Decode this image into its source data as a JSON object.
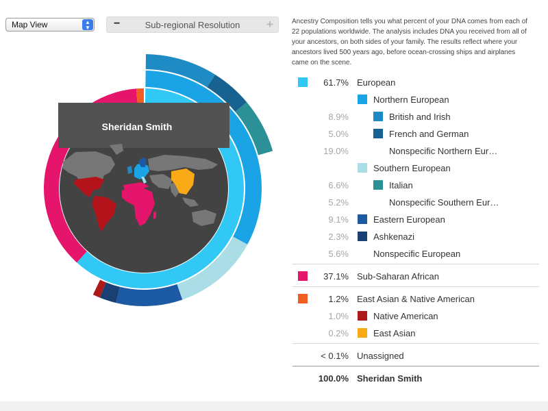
{
  "toolbar": {
    "view_select": "Map View",
    "resolution_label": "Sub-regional Resolution",
    "minus_symbol": "−",
    "plus_symbol": "+"
  },
  "description": "Ancestry Composition tells you what percent of your DNA comes from each of 22 populations worldwide. The analysis includes DNA you received from all of your ancestors, on both sides of your family. The results reflect where your ancestors lived 500 years ago, before ocean-crossing ships and airplanes came on the scene.",
  "chart_data": {
    "type": "pie",
    "subtype": "multi-ring-sunburst",
    "center_label": "Sheridan Smith",
    "rings": [
      {
        "level": 1,
        "segments": [
          {
            "name": "European",
            "value": 61.7,
            "color": "#31c8f5"
          },
          {
            "name": "Sub-Saharan African",
            "value": 37.1,
            "color": "#e5156b"
          },
          {
            "name": "East Asian & Native American",
            "value": 1.2,
            "color": "#f15e22"
          }
        ]
      },
      {
        "level": 2,
        "segments": [
          {
            "name": "Northern European",
            "value": 32.9,
            "color": "#1aa4e6"
          },
          {
            "name": "Southern European",
            "value": 11.8,
            "color": "#aadde5"
          },
          {
            "name": "Eastern European",
            "value": 9.1,
            "color": "#1c5aa4"
          },
          {
            "name": "Ashkenazi",
            "value": 2.3,
            "color": "#1a3f72"
          },
          {
            "name": "Native American",
            "value": 1.0,
            "color": "#ac1a1a"
          }
        ]
      },
      {
        "level": 3,
        "segments": [
          {
            "name": "British and Irish",
            "value": 8.9,
            "color": "#1f8bc5"
          },
          {
            "name": "French and German",
            "value": 5.0,
            "color": "#176290"
          },
          {
            "name": "Italian",
            "value": 6.6,
            "color": "#2b9197"
          }
        ]
      }
    ]
  },
  "rows": [
    {
      "pct": "61.7%",
      "label": "European",
      "color": "#31c8f5",
      "level": 0,
      "gray": false
    },
    {
      "pct": "",
      "label": "Northern European",
      "color": "#1aa4e6",
      "level": 1,
      "gray": false
    },
    {
      "pct": "8.9%",
      "label": "British and Irish",
      "color": "#1f8bc5",
      "level": 2,
      "gray": true
    },
    {
      "pct": "5.0%",
      "label": "French and German",
      "color": "#176290",
      "level": 2,
      "gray": true
    },
    {
      "pct": "19.0%",
      "label": "Nonspecific Northern Eur…",
      "color": "",
      "level": 2,
      "gray": true
    },
    {
      "pct": "",
      "label": "Southern European",
      "color": "#aadde5",
      "level": 1,
      "gray": false
    },
    {
      "pct": "6.6%",
      "label": "Italian",
      "color": "#2b9197",
      "level": 2,
      "gray": true
    },
    {
      "pct": "5.2%",
      "label": "Nonspecific Southern Eur…",
      "color": "",
      "level": 2,
      "gray": true
    },
    {
      "pct": "9.1%",
      "label": "Eastern European",
      "color": "#1c5aa4",
      "level": 1,
      "gray": true
    },
    {
      "pct": "2.3%",
      "label": "Ashkenazi",
      "color": "#1a3f72",
      "level": 1,
      "gray": true
    },
    {
      "pct": "5.6%",
      "label": "Nonspecific European",
      "color": "",
      "level": 1,
      "gray": true
    },
    {
      "divider": true
    },
    {
      "pct": "37.1%",
      "label": "Sub-Saharan African",
      "color": "#e5156b",
      "level": 0,
      "gray": false
    },
    {
      "divider": true
    },
    {
      "pct": "1.2%",
      "label": "East Asian & Native American",
      "color": "#f15e22",
      "level": 0,
      "gray": false
    },
    {
      "pct": "1.0%",
      "label": "Native American",
      "color": "#ac1a1a",
      "level": 1,
      "gray": true
    },
    {
      "pct": "0.2%",
      "label": "East Asian",
      "color": "#f7aa16",
      "level": 1,
      "gray": true
    },
    {
      "divider": true
    },
    {
      "pct": "< 0.1%",
      "label": "Unassigned",
      "color": "",
      "level": 0,
      "gray": false
    },
    {
      "divider": true,
      "dark": true
    },
    {
      "pct": "100.0%",
      "label": "Sheridan Smith",
      "color": "",
      "level": 0,
      "gray": false,
      "total": true
    }
  ]
}
